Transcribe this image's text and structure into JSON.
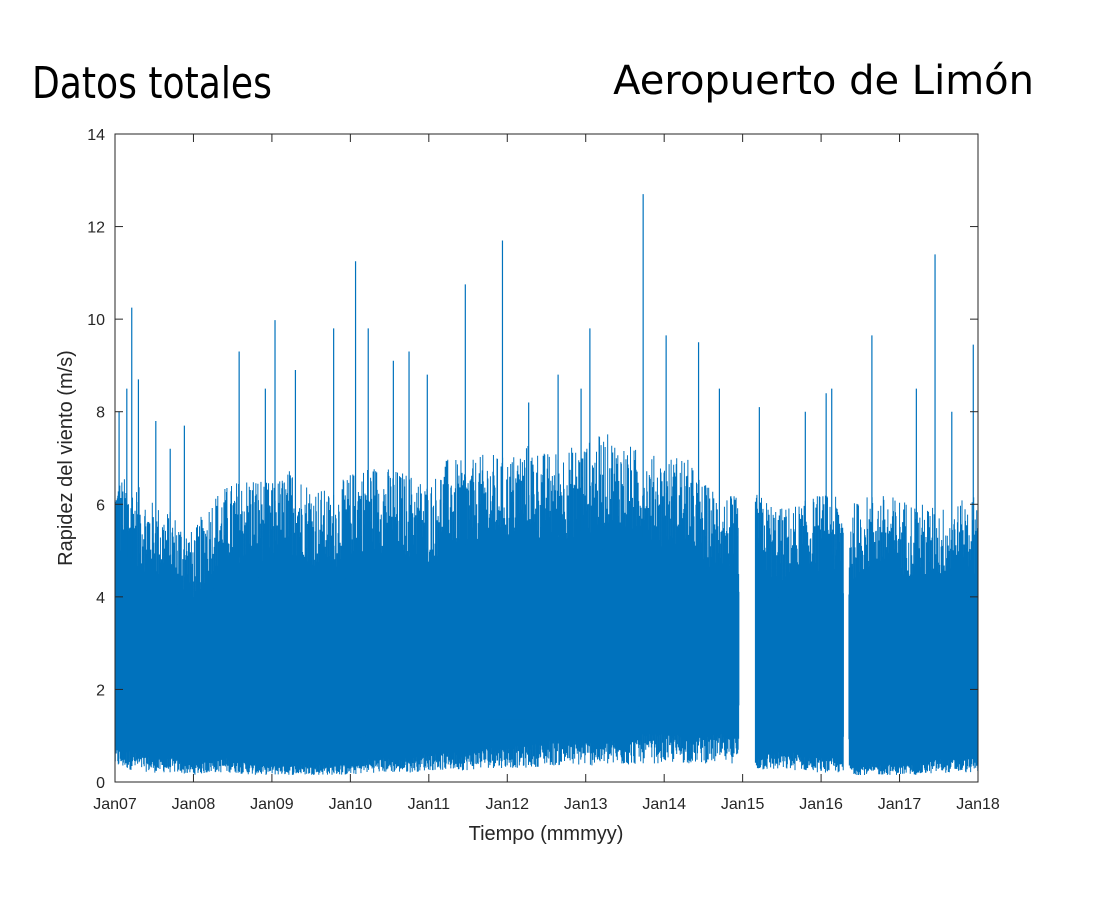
{
  "titles": {
    "left": "Datos totales",
    "right": "Aeropuerto de Limón"
  },
  "chart_data": {
    "type": "line",
    "xlabel": "Tiempo (mmmyy)",
    "ylabel": "Rapidez del viento (m/s)",
    "xlim": [
      "2007-01-01",
      "2018-01-01"
    ],
    "ylim": [
      0,
      14
    ],
    "x_ticks": [
      "Jan07",
      "Jan08",
      "Jan09",
      "Jan10",
      "Jan11",
      "Jan12",
      "Jan13",
      "Jan14",
      "Jan15",
      "Jan16",
      "Jan17",
      "Jan18"
    ],
    "y_ticks": [
      0,
      2,
      4,
      6,
      8,
      10,
      12,
      14
    ],
    "grid": false,
    "series": [
      {
        "color": "#0072BD",
        "envelope": {
          "x": [
            "2007-01-01",
            "2007-04-01",
            "2007-07-01",
            "2007-10-01",
            "2008-01-01",
            "2008-04-01",
            "2008-07-01",
            "2008-10-01",
            "2009-01-01",
            "2009-04-01",
            "2009-07-01",
            "2009-10-01",
            "2010-01-01",
            "2010-04-01",
            "2010-07-01",
            "2010-10-01",
            "2011-01-01",
            "2011-04-01",
            "2011-07-01",
            "2011-10-01",
            "2012-01-01",
            "2012-04-01",
            "2012-07-01",
            "2012-10-01",
            "2013-01-01",
            "2013-04-01",
            "2013-07-01",
            "2013-10-01",
            "2014-01-01",
            "2014-04-01",
            "2014-07-01",
            "2014-10-01",
            "2014-12-10",
            "2015-03-01",
            "2015-07-01",
            "2015-10-01",
            "2016-01-01",
            "2016-03-15",
            "2016-06-01",
            "2016-09-01",
            "2017-01-01",
            "2017-04-01",
            "2017-07-01",
            "2017-10-01",
            "2018-01-01"
          ],
          "upper": [
            6.2,
            6.0,
            5.6,
            5.4,
            5.0,
            5.8,
            6.0,
            6.2,
            6.0,
            6.3,
            6.0,
            5.8,
            6.2,
            6.4,
            6.3,
            6.2,
            6.0,
            6.5,
            6.4,
            6.6,
            6.5,
            6.8,
            6.6,
            6.7,
            6.8,
            7.0,
            6.8,
            6.6,
            6.5,
            6.6,
            6.0,
            5.8,
            5.7,
            5.8,
            5.5,
            5.6,
            5.8,
            5.7,
            5.6,
            5.8,
            5.7,
            5.6,
            5.5,
            5.6,
            5.8
          ],
          "lower": [
            0.6,
            0.5,
            0.4,
            0.4,
            0.3,
            0.4,
            0.4,
            0.3,
            0.3,
            0.3,
            0.3,
            0.3,
            0.3,
            0.4,
            0.4,
            0.4,
            0.5,
            0.5,
            0.5,
            0.6,
            0.6,
            0.6,
            0.7,
            0.7,
            0.7,
            0.7,
            0.7,
            0.8,
            0.8,
            0.8,
            0.8,
            0.8,
            0.8,
            0.5,
            0.5,
            0.5,
            0.4,
            0.4,
            0.3,
            0.3,
            0.3,
            0.3,
            0.4,
            0.4,
            0.4
          ]
        },
        "peaks": [
          {
            "x": "2007-01-20",
            "y": 8.0
          },
          {
            "x": "2007-02-25",
            "y": 8.5
          },
          {
            "x": "2007-03-20",
            "y": 10.25
          },
          {
            "x": "2007-04-20",
            "y": 8.7
          },
          {
            "x": "2007-07-10",
            "y": 7.8
          },
          {
            "x": "2007-09-15",
            "y": 7.2
          },
          {
            "x": "2007-11-20",
            "y": 7.7
          },
          {
            "x": "2008-08-01",
            "y": 9.3
          },
          {
            "x": "2008-12-01",
            "y": 8.5
          },
          {
            "x": "2009-01-15",
            "y": 9.98
          },
          {
            "x": "2009-04-20",
            "y": 8.9
          },
          {
            "x": "2009-10-15",
            "y": 9.8
          },
          {
            "x": "2010-01-25",
            "y": 11.25
          },
          {
            "x": "2010-03-25",
            "y": 9.8
          },
          {
            "x": "2010-07-20",
            "y": 9.1
          },
          {
            "x": "2010-10-01",
            "y": 9.3
          },
          {
            "x": "2010-12-25",
            "y": 8.8
          },
          {
            "x": "2011-06-20",
            "y": 10.75
          },
          {
            "x": "2011-12-10",
            "y": 11.7
          },
          {
            "x": "2012-04-10",
            "y": 8.2
          },
          {
            "x": "2012-08-25",
            "y": 8.8
          },
          {
            "x": "2012-12-10",
            "y": 8.5
          },
          {
            "x": "2013-01-20",
            "y": 9.8
          },
          {
            "x": "2013-09-25",
            "y": 12.7
          },
          {
            "x": "2014-01-10",
            "y": 9.65
          },
          {
            "x": "2014-06-10",
            "y": 9.5
          },
          {
            "x": "2014-09-15",
            "y": 8.5
          },
          {
            "x": "2015-03-20",
            "y": 8.1
          },
          {
            "x": "2015-10-20",
            "y": 8.0
          },
          {
            "x": "2016-01-25",
            "y": 8.4
          },
          {
            "x": "2016-02-20",
            "y": 8.5
          },
          {
            "x": "2016-08-25",
            "y": 9.65
          },
          {
            "x": "2017-03-20",
            "y": 8.5
          },
          {
            "x": "2017-06-15",
            "y": 11.4
          },
          {
            "x": "2017-09-01",
            "y": 8.0
          },
          {
            "x": "2017-12-10",
            "y": 9.45
          }
        ],
        "gaps": [
          {
            "start": "2014-12-15",
            "end": "2015-03-01"
          },
          {
            "start": "2016-04-15",
            "end": "2016-05-10"
          }
        ]
      }
    ]
  }
}
